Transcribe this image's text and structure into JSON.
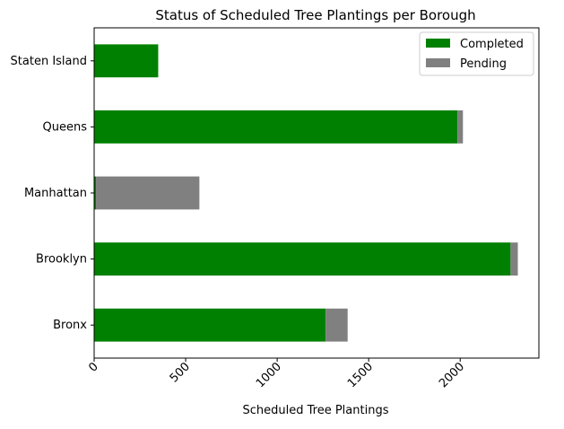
{
  "chart_data": {
    "type": "bar",
    "orientation": "horizontal",
    "stacked": true,
    "title": "Status of Scheduled Tree Plantings per Borough",
    "xlabel": "Scheduled Tree Plantings",
    "ylabel": "",
    "categories": [
      "Bronx",
      "Brooklyn",
      "Manhattan",
      "Queens",
      "Staten Island"
    ],
    "series": [
      {
        "name": "Completed",
        "color": "#008000",
        "values": [
          1265,
          2275,
          10,
          1985,
          350
        ]
      },
      {
        "name": "Pending",
        "color": "#808080",
        "values": [
          120,
          40,
          565,
          30,
          0
        ]
      }
    ],
    "xlim": [
      0,
      2430
    ],
    "xticks": [
      0,
      500,
      1000,
      1500,
      2000
    ],
    "xtick_rotation": 45,
    "grid": false,
    "legend": {
      "position": "top-right"
    }
  }
}
